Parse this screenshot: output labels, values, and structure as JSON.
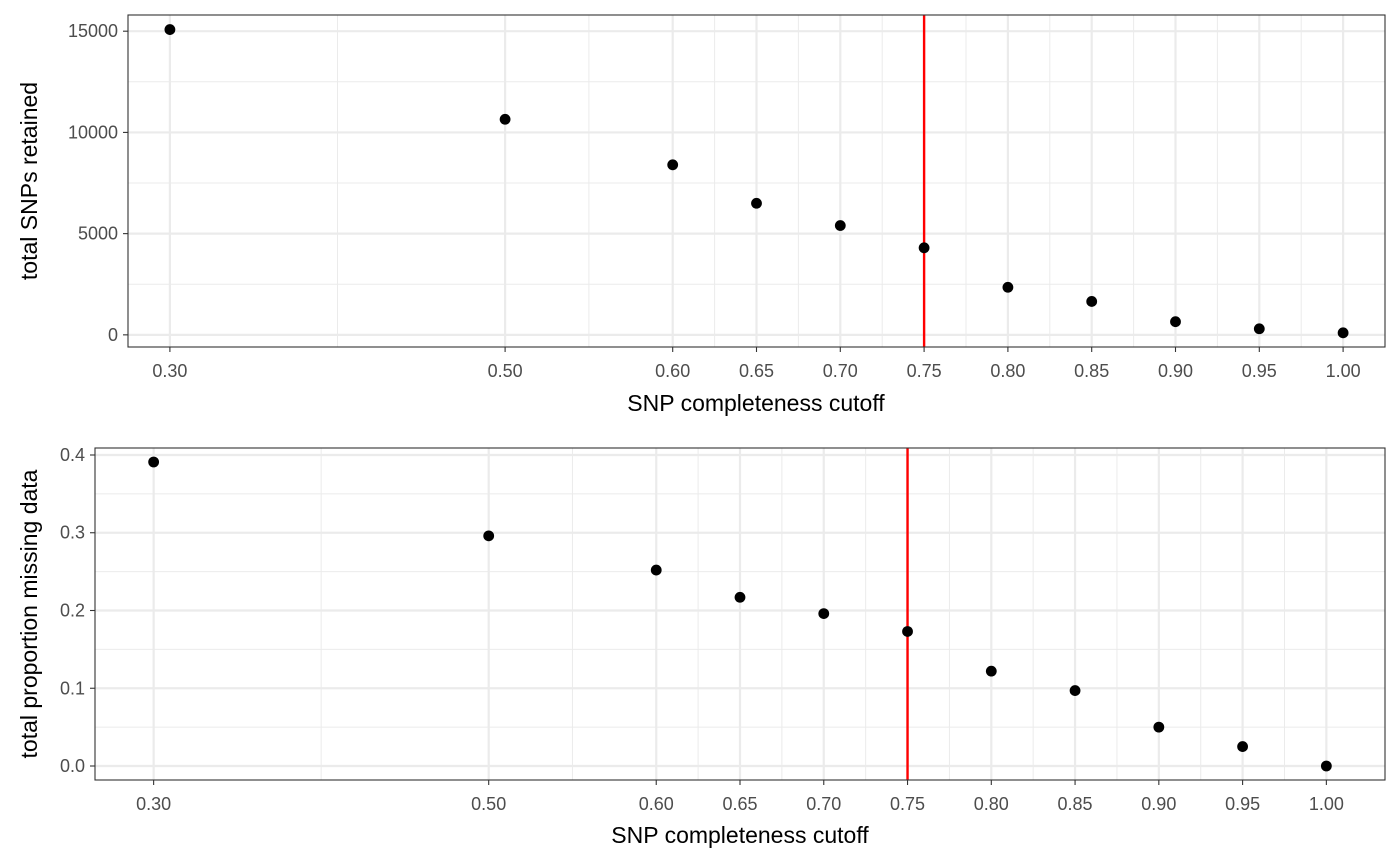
{
  "chart_data": [
    {
      "type": "scatter",
      "title": "",
      "xlabel": "SNP completeness cutoff",
      "ylabel": "total SNPs retained",
      "xlim": [
        0.275,
        1.025
      ],
      "ylim": [
        -600,
        15800
      ],
      "x_ticks": [
        0.3,
        0.5,
        0.6,
        0.65,
        0.7,
        0.75,
        0.8,
        0.85,
        0.9,
        0.95,
        1.0
      ],
      "x_tick_labels": [
        "0.30",
        "0.50",
        "0.60",
        "0.65",
        "0.70",
        "0.75",
        "0.80",
        "0.85",
        "0.90",
        "0.95",
        "1.00"
      ],
      "x_minor_breaks": [
        0.4,
        0.55,
        0.625,
        0.675,
        0.725,
        0.775,
        0.825,
        0.875,
        0.925,
        0.975
      ],
      "y_ticks": [
        0,
        5000,
        10000,
        15000
      ],
      "y_tick_labels": [
        "0",
        "5000",
        "10000",
        "15000"
      ],
      "y_minor_breaks": [
        2500,
        7500,
        12500
      ],
      "grid": true,
      "point_color": "#000000",
      "vline": {
        "x": 0.75,
        "color": "#ff0000"
      },
      "series": [
        {
          "x": [
            0.3,
            0.5,
            0.6,
            0.65,
            0.7,
            0.75,
            0.8,
            0.85,
            0.9,
            0.95,
            1.0
          ],
          "values": [
            15080,
            10650,
            8400,
            6500,
            5400,
            4300,
            2350,
            1650,
            650,
            300,
            100
          ]
        }
      ]
    },
    {
      "type": "scatter",
      "title": "",
      "xlabel": "SNP completeness cutoff",
      "ylabel": "total proportion missing data",
      "xlim": [
        0.265,
        1.035
      ],
      "ylim": [
        -0.018,
        0.409
      ],
      "x_ticks": [
        0.3,
        0.5,
        0.6,
        0.65,
        0.7,
        0.75,
        0.8,
        0.85,
        0.9,
        0.95,
        1.0
      ],
      "x_tick_labels": [
        "0.30",
        "0.50",
        "0.60",
        "0.65",
        "0.70",
        "0.75",
        "0.80",
        "0.85",
        "0.90",
        "0.95",
        "1.00"
      ],
      "x_minor_breaks": [
        0.4,
        0.55,
        0.625,
        0.675,
        0.725,
        0.775,
        0.825,
        0.875,
        0.925,
        0.975
      ],
      "y_ticks": [
        0.0,
        0.1,
        0.2,
        0.3,
        0.4
      ],
      "y_tick_labels": [
        "0.0",
        "0.1",
        "0.2",
        "0.3",
        "0.4"
      ],
      "y_minor_breaks": [
        0.05,
        0.15,
        0.25,
        0.35
      ],
      "grid": true,
      "point_color": "#000000",
      "vline": {
        "x": 0.75,
        "color": "#ff0000"
      },
      "series": [
        {
          "x": [
            0.3,
            0.5,
            0.6,
            0.65,
            0.7,
            0.75,
            0.8,
            0.85,
            0.9,
            0.95,
            1.0
          ],
          "values": [
            0.391,
            0.296,
            0.252,
            0.217,
            0.196,
            0.173,
            0.122,
            0.097,
            0.05,
            0.025,
            0.0
          ]
        }
      ]
    }
  ]
}
